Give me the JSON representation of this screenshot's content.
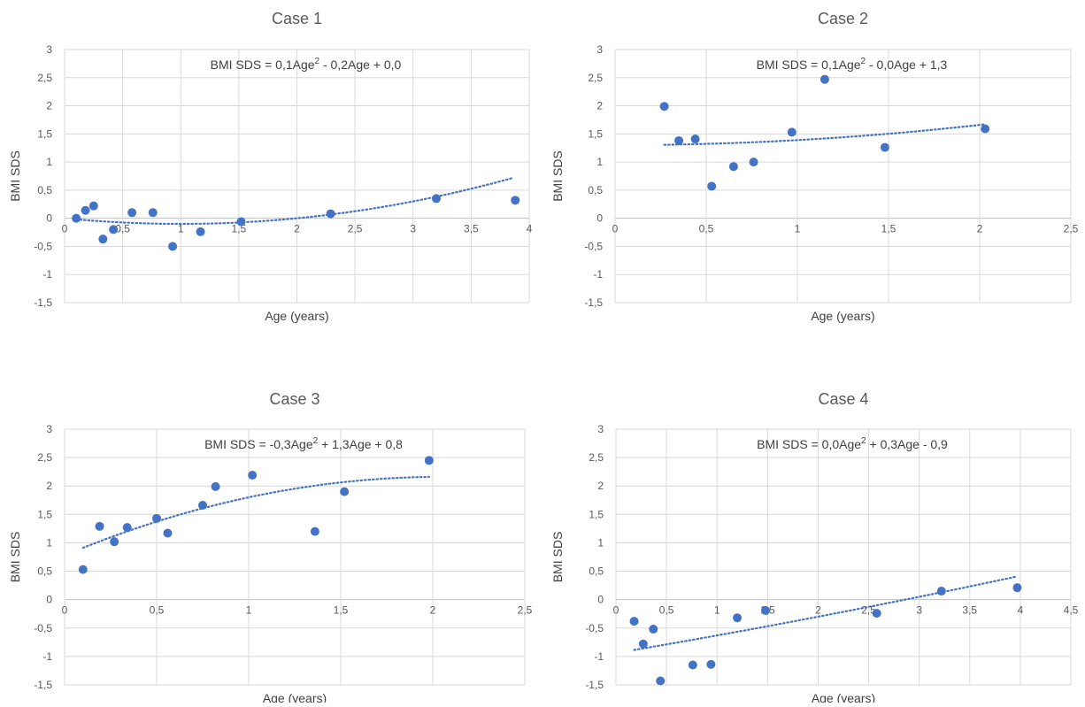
{
  "chart_data": [
    {
      "type": "scatter",
      "title": "Case 1",
      "xlabel": "Age (years)",
      "ylabel": "BMI SDS",
      "xlim": [
        0,
        4
      ],
      "ylim": [
        -1.5,
        3
      ],
      "x_ticks": [
        "0",
        "0,5",
        "1",
        "1,5",
        "2",
        "2,5",
        "3",
        "3,5",
        "4"
      ],
      "y_ticks": [
        "3",
        "2,5",
        "2",
        "1,5",
        "1",
        "0,5",
        "0",
        "-0,5",
        "-1",
        "-1,5"
      ],
      "equation": {
        "prefix": "BMI SDS = 0,1Age",
        "sup": "2",
        "suffix": " - 0,2Age + 0,0"
      },
      "trend": {
        "type": "poly2",
        "coef": [
          0.0,
          -0.2,
          0.1
        ],
        "x_range": [
          0.1,
          3.85
        ]
      },
      "points": [
        {
          "x": 0.1,
          "y": 0.0
        },
        {
          "x": 0.18,
          "y": 0.14
        },
        {
          "x": 0.25,
          "y": 0.22
        },
        {
          "x": 0.33,
          "y": -0.37
        },
        {
          "x": 0.42,
          "y": -0.2
        },
        {
          "x": 0.58,
          "y": 0.1
        },
        {
          "x": 0.76,
          "y": 0.1
        },
        {
          "x": 0.93,
          "y": -0.5
        },
        {
          "x": 1.17,
          "y": -0.24
        },
        {
          "x": 1.52,
          "y": -0.06
        },
        {
          "x": 2.29,
          "y": 0.08
        },
        {
          "x": 3.2,
          "y": 0.35
        },
        {
          "x": 3.88,
          "y": 0.32
        }
      ]
    },
    {
      "type": "scatter",
      "title": "Case 2",
      "xlabel": "Age (years)",
      "ylabel": "BMI SDS",
      "xlim": [
        0,
        2.5
      ],
      "ylim": [
        -1.5,
        3
      ],
      "x_ticks": [
        "0",
        "0,5",
        "1",
        "1,5",
        "2",
        "2,5"
      ],
      "y_ticks": [
        "3",
        "2,5",
        "2",
        "1,5",
        "1",
        "0,5",
        "0",
        "-0,5",
        "-1",
        "-1,5"
      ],
      "equation": {
        "prefix": "BMI SDS = 0,1Age",
        "sup": "2",
        "suffix": " - 0,0Age + 1,3"
      },
      "trend": {
        "type": "poly2",
        "coef": [
          1.3,
          0.0,
          0.09
        ],
        "x_range": [
          0.27,
          2.03
        ]
      },
      "points": [
        {
          "x": 0.27,
          "y": 1.99
        },
        {
          "x": 0.35,
          "y": 1.38
        },
        {
          "x": 0.44,
          "y": 1.41
        },
        {
          "x": 0.53,
          "y": 0.57
        },
        {
          "x": 0.65,
          "y": 0.92
        },
        {
          "x": 0.76,
          "y": 1.0
        },
        {
          "x": 0.97,
          "y": 1.53
        },
        {
          "x": 1.15,
          "y": 2.47
        },
        {
          "x": 1.48,
          "y": 1.26
        },
        {
          "x": 2.03,
          "y": 1.59
        }
      ]
    },
    {
      "type": "scatter",
      "title": "Case 3",
      "xlabel": "Age (years)",
      "ylabel": "BMI SDS",
      "xlim": [
        0,
        2.5
      ],
      "ylim": [
        -1.5,
        3
      ],
      "x_ticks": [
        "0",
        "0,5",
        "1",
        "1,5",
        "2",
        "2,5"
      ],
      "y_ticks": [
        "3",
        "2,5",
        "2",
        "1,5",
        "1",
        "0,5",
        "0",
        "-0,5",
        "-1",
        "-1,5"
      ],
      "equation": {
        "prefix": "BMI SDS = -0,3Age",
        "sup": "2",
        "suffix": " + 1,3Age + 0,8"
      },
      "trend": {
        "type": "poly2",
        "coef": [
          0.78,
          1.35,
          -0.33
        ],
        "x_range": [
          0.1,
          1.98
        ]
      },
      "points": [
        {
          "x": 0.1,
          "y": 0.53
        },
        {
          "x": 0.19,
          "y": 1.29
        },
        {
          "x": 0.27,
          "y": 1.02
        },
        {
          "x": 0.34,
          "y": 1.27
        },
        {
          "x": 0.5,
          "y": 1.43
        },
        {
          "x": 0.56,
          "y": 1.17
        },
        {
          "x": 0.75,
          "y": 1.66
        },
        {
          "x": 0.82,
          "y": 1.99
        },
        {
          "x": 1.02,
          "y": 2.19
        },
        {
          "x": 1.36,
          "y": 1.2
        },
        {
          "x": 1.52,
          "y": 1.9
        },
        {
          "x": 1.98,
          "y": 2.45
        }
      ]
    },
    {
      "type": "scatter",
      "title": "Case 4",
      "xlabel": "Age (years)",
      "ylabel": "BMI SDS",
      "xlim": [
        0,
        4.5
      ],
      "ylim": [
        -1.5,
        3
      ],
      "x_ticks": [
        "0",
        "0,5",
        "1",
        "1,5",
        "2",
        "2,5",
        "3",
        "3,5",
        "4",
        "4,5"
      ],
      "y_ticks": [
        "3",
        "2,5",
        "2",
        "1,5",
        "1",
        "0,5",
        "0",
        "-0,5",
        "-1",
        "-1,5"
      ],
      "equation": {
        "prefix": "BMI SDS = 0,0Age",
        "sup": "2",
        "suffix": " + 0,3Age - 0,9"
      },
      "trend": {
        "type": "poly2",
        "coef": [
          -0.94,
          0.3,
          0.01
        ],
        "x_range": [
          0.18,
          3.95
        ]
      },
      "points": [
        {
          "x": 0.18,
          "y": -0.38
        },
        {
          "x": 0.27,
          "y": -0.78
        },
        {
          "x": 0.37,
          "y": -0.52
        },
        {
          "x": 0.44,
          "y": -1.43
        },
        {
          "x": 0.76,
          "y": -1.15
        },
        {
          "x": 0.94,
          "y": -1.14
        },
        {
          "x": 1.2,
          "y": -0.32
        },
        {
          "x": 1.48,
          "y": -0.19
        },
        {
          "x": 2.58,
          "y": -0.24
        },
        {
          "x": 3.22,
          "y": 0.15
        },
        {
          "x": 3.97,
          "y": 0.21
        }
      ]
    }
  ]
}
